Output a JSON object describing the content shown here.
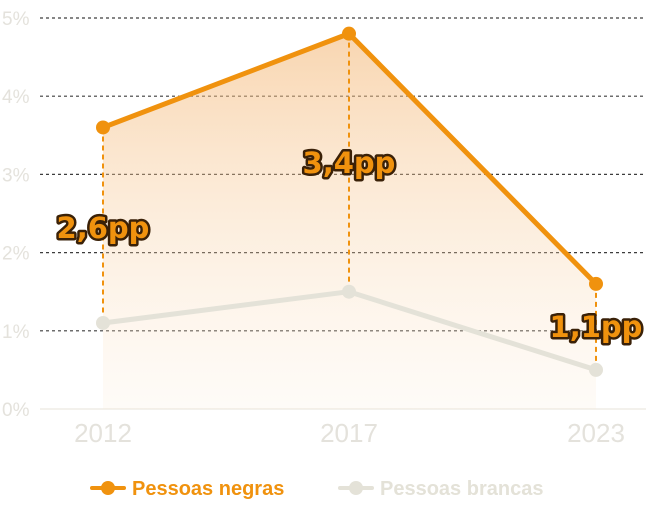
{
  "chart_data": {
    "type": "line",
    "categories": [
      "2012",
      "2017",
      "2023"
    ],
    "y_ticks": [
      "0%",
      "1%",
      "2%",
      "3%",
      "4%",
      "5%"
    ],
    "ylim": [
      0,
      5
    ],
    "grid": true,
    "legend_position": "bottom",
    "series": [
      {
        "name": "Pessoas negras",
        "values": [
          3.6,
          4.8,
          1.6
        ],
        "color": "#f0920e",
        "area_fill": true
      },
      {
        "name": "Pessoas brancas",
        "values": [
          1.1,
          1.5,
          0.5
        ],
        "color": "#e4e2d8",
        "area_fill": false
      }
    ],
    "annotations": [
      {
        "category": "2012",
        "label": "2,6pp"
      },
      {
        "category": "2017",
        "label": "3,4pp"
      },
      {
        "category": "2023",
        "label": "1,1pp"
      }
    ]
  }
}
